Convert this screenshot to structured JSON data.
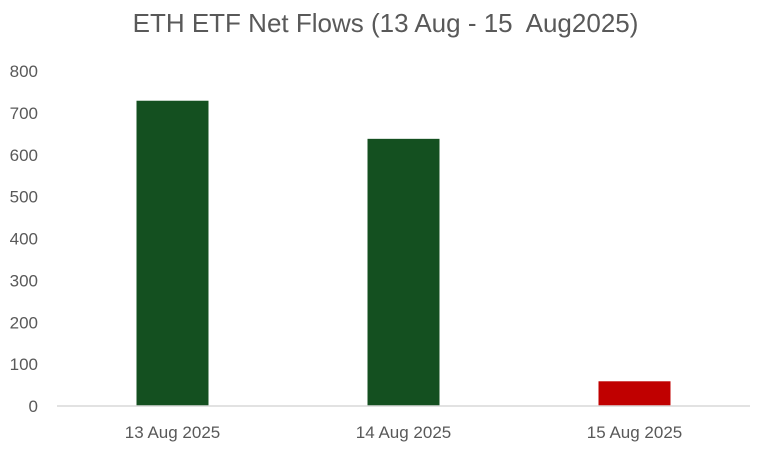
{
  "chart_data": {
    "type": "bar",
    "title": "ETH ETF Net Flows (13 Aug - 15  Aug2025)",
    "xlabel": "",
    "ylabel": "",
    "categories": [
      "13 Aug 2025",
      "14 Aug 2025",
      "15 Aug 2025"
    ],
    "values": [
      729,
      638,
      59
    ],
    "bar_colors": [
      "#145020",
      "#145020",
      "#c00000"
    ],
    "ylim": [
      0,
      800
    ],
    "yticks": [
      0,
      100,
      200,
      300,
      400,
      500,
      600,
      700,
      800
    ],
    "grid": false,
    "legend": "none"
  }
}
